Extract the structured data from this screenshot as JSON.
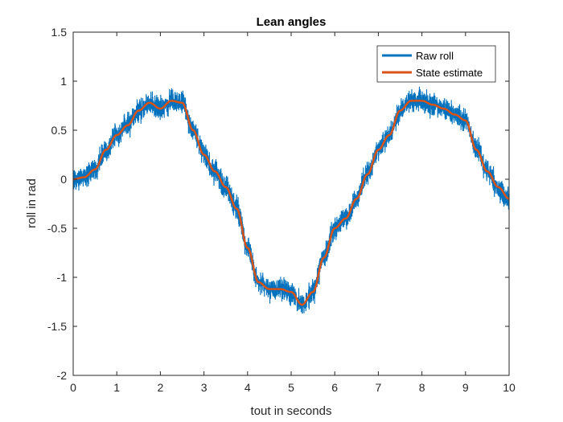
{
  "chart_data": {
    "type": "line",
    "title": "Lean angles",
    "xlabel": "tout in seconds",
    "ylabel": "roll in rad",
    "xlim": [
      0,
      10
    ],
    "ylim": [
      -2,
      1.5
    ],
    "xticks": [
      0,
      1,
      2,
      3,
      4,
      5,
      6,
      7,
      8,
      9,
      10
    ],
    "yticks": [
      -2,
      -1.5,
      -1,
      -0.5,
      0,
      0.5,
      1,
      1.5
    ],
    "xtick_labels": [
      "0",
      "1",
      "2",
      "3",
      "4",
      "5",
      "6",
      "7",
      "8",
      "9",
      "10"
    ],
    "ytick_labels": [
      "-2",
      "-1.5",
      "-1",
      "-0.5",
      "0",
      "0.5",
      "1",
      "1.5"
    ],
    "grid": false,
    "legend": {
      "location": "top-right",
      "entries": [
        "Raw roll",
        "State estimate"
      ]
    },
    "series": [
      {
        "name": "Raw roll",
        "color": "#0072BD",
        "style": "noisy band around the state estimate",
        "x": [
          0,
          0.25,
          0.5,
          0.75,
          1,
          1.25,
          1.5,
          1.75,
          2,
          2.25,
          2.5,
          2.75,
          3,
          3.25,
          3.5,
          3.75,
          4,
          4.25,
          4.5,
          4.75,
          5,
          5.25,
          5.5,
          5.75,
          6,
          6.25,
          6.5,
          6.75,
          7,
          7.25,
          7.5,
          7.75,
          8,
          8.25,
          8.5,
          8.75,
          9,
          9.25,
          9.5,
          9.75,
          10
        ],
        "y": [
          0,
          0.02,
          0.1,
          0.3,
          0.45,
          0.55,
          0.7,
          0.78,
          0.72,
          0.8,
          0.78,
          0.5,
          0.25,
          0.08,
          -0.08,
          -0.3,
          -0.7,
          -1.05,
          -1.12,
          -1.12,
          -1.15,
          -1.28,
          -1.15,
          -0.8,
          -0.5,
          -0.4,
          -0.2,
          0.05,
          0.3,
          0.45,
          0.7,
          0.8,
          0.8,
          0.76,
          0.72,
          0.66,
          0.6,
          0.3,
          0.08,
          -0.08,
          -0.2
        ],
        "noise_amplitude": 0.14
      },
      {
        "name": "State estimate",
        "color": "#D95319",
        "x": [
          0,
          0.25,
          0.5,
          0.75,
          1,
          1.25,
          1.5,
          1.75,
          2,
          2.25,
          2.5,
          2.75,
          3,
          3.25,
          3.5,
          3.75,
          4,
          4.25,
          4.5,
          4.75,
          5,
          5.25,
          5.5,
          5.75,
          6,
          6.25,
          6.5,
          6.75,
          7,
          7.25,
          7.5,
          7.75,
          8,
          8.25,
          8.5,
          8.75,
          9,
          9.25,
          9.5,
          9.75,
          10
        ],
        "y": [
          0,
          0.02,
          0.1,
          0.3,
          0.45,
          0.55,
          0.7,
          0.78,
          0.72,
          0.8,
          0.78,
          0.5,
          0.25,
          0.08,
          -0.08,
          -0.3,
          -0.7,
          -1.05,
          -1.12,
          -1.12,
          -1.15,
          -1.28,
          -1.15,
          -0.8,
          -0.5,
          -0.4,
          -0.2,
          0.05,
          0.3,
          0.45,
          0.7,
          0.8,
          0.8,
          0.76,
          0.72,
          0.66,
          0.6,
          0.3,
          0.08,
          -0.08,
          -0.2
        ]
      }
    ]
  }
}
